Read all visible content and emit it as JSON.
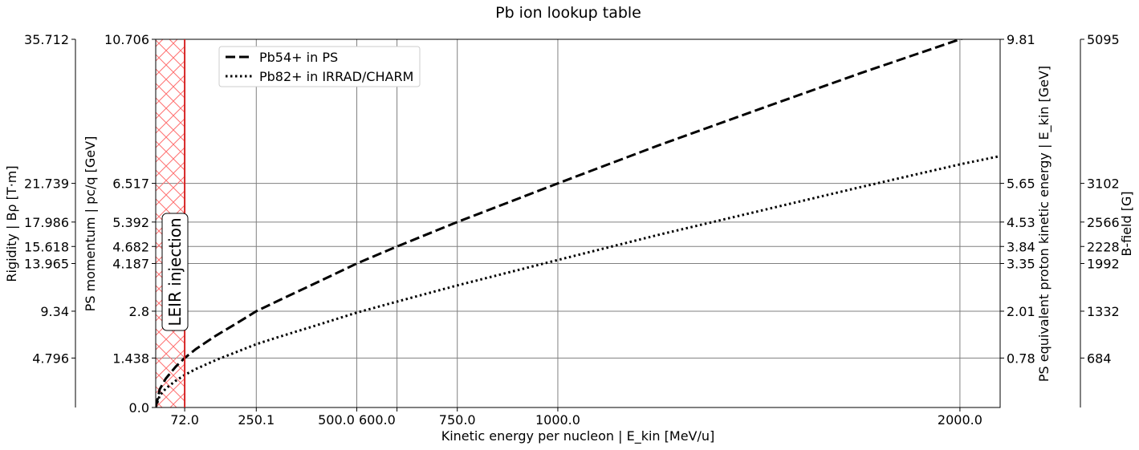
{
  "chart_data": {
    "type": "line",
    "title": "Pb ion lookup table",
    "xlabel": "Kinetic energy per nucleon | E_kin [MeV/u]",
    "x_ticks": [
      72.0,
      250.1,
      500.0,
      600.0,
      750.0,
      1000.0,
      2000.0
    ],
    "x_tick_labels": [
      "72.0",
      "250.1",
      "500.0 600.0",
      "",
      "750.0",
      "1000.0",
      "2000.0"
    ],
    "xlim": [
      0,
      2100
    ],
    "ylim": [
      0,
      10.706
    ],
    "grid": true,
    "legend": "top-left",
    "axes": {
      "left_outer": {
        "label": "Rigidity | Bρ [T·m]",
        "ticks": [
          "4.796",
          "9.34",
          "13.965",
          "15.618",
          "17.986",
          "21.739",
          "35.712"
        ]
      },
      "left_main": {
        "label": "PS momentum | pc/q [GeV]",
        "ticks": [
          "0.0",
          "1.438",
          "2.8",
          "4.187",
          "4.682",
          "5.392",
          "6.517",
          "10.706"
        ],
        "tick_values": [
          0.0,
          1.438,
          2.8,
          4.187,
          4.682,
          5.392,
          6.517,
          10.706
        ]
      },
      "right_inner": {
        "label": "PS equivalent proton kinetic energy | E_kin [GeV]",
        "ticks": [
          "0.78",
          "2.01",
          "3.35",
          "3.84",
          "4.53",
          "5.65",
          "9.81"
        ]
      },
      "right_outer": {
        "label": "B-field [G]",
        "ticks": [
          "684",
          "1332",
          "1992",
          "2228",
          "2566",
          "3102",
          "5095"
        ]
      }
    },
    "series": [
      {
        "name": "Pb54+ in PS",
        "style": "dashed",
        "color": "#000000",
        "x": [
          0,
          10,
          25,
          50,
          72,
          100,
          150,
          200,
          250.1,
          300,
          400,
          500,
          600,
          750,
          1000,
          1250,
          1500,
          1750,
          2000,
          2070
        ],
        "y": [
          0,
          0.53,
          0.84,
          1.19,
          1.438,
          1.7,
          2.09,
          2.44,
          2.8,
          3.08,
          3.63,
          4.187,
          4.682,
          5.392,
          6.517,
          7.62,
          8.67,
          9.71,
          10.706,
          10.95
        ]
      },
      {
        "name": "Pb82+ in IRRAD/CHARM",
        "style": "dotted",
        "color": "#000000",
        "x": [
          0,
          10,
          25,
          50,
          72,
          100,
          150,
          200,
          250,
          300,
          400,
          500,
          600,
          750,
          1000,
          1250,
          1500,
          1750,
          2000,
          2100
        ],
        "y": [
          0,
          0.35,
          0.55,
          0.78,
          0.947,
          1.12,
          1.38,
          1.61,
          1.84,
          2.03,
          2.39,
          2.76,
          3.08,
          3.55,
          4.29,
          5.02,
          5.71,
          6.4,
          7.07,
          7.31
        ]
      }
    ],
    "annotations": [
      {
        "text": "LEIR injection",
        "x": 72.0,
        "style": "red vertical line with hatched band"
      }
    ]
  },
  "colors": {
    "grid": "#808080",
    "leir_line": "#d62728",
    "hatch": "#ff8080"
  }
}
